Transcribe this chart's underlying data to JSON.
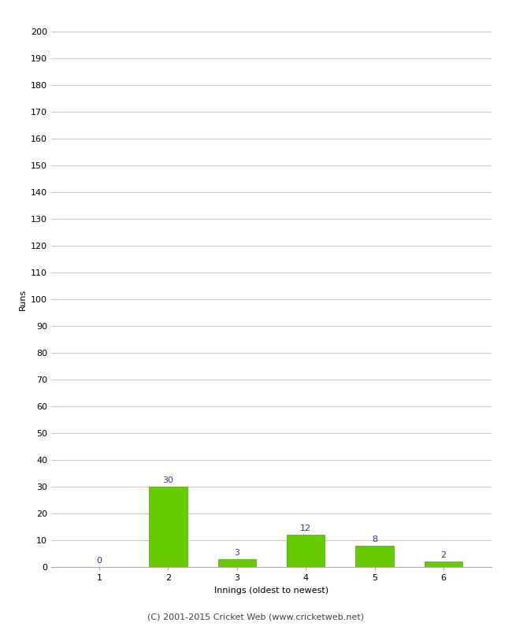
{
  "categories": [
    1,
    2,
    3,
    4,
    5,
    6
  ],
  "values": [
    0,
    30,
    3,
    12,
    8,
    2
  ],
  "bar_color": "#66cc00",
  "bar_edge_color": "#55aa00",
  "label_color": "#3333aa",
  "ylabel": "Runs",
  "xlabel": "Innings (oldest to newest)",
  "ylim": [
    0,
    200
  ],
  "yticks": [
    0,
    10,
    20,
    30,
    40,
    50,
    60,
    70,
    80,
    90,
    100,
    110,
    120,
    130,
    140,
    150,
    160,
    170,
    180,
    190,
    200
  ],
  "footer": "(C) 2001-2015 Cricket Web (www.cricketweb.net)",
  "background_color": "#ffffff",
  "grid_color": "#cccccc",
  "label_fontsize": 8,
  "axis_fontsize": 8,
  "footer_fontsize": 8,
  "bar_width": 0.55
}
